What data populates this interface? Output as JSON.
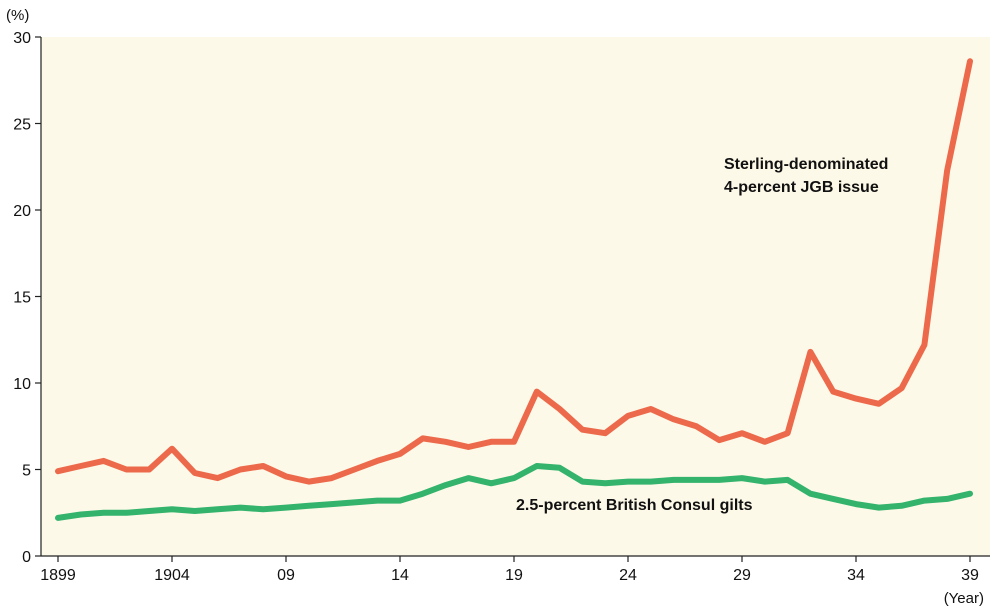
{
  "chart_data": {
    "type": "line",
    "title": "",
    "y_unit_label": "(%)",
    "x_unit_label": "(Year)",
    "ylim": [
      0,
      30
    ],
    "y_ticks": [
      0,
      5,
      10,
      15,
      20,
      25,
      30
    ],
    "xlim": [
      1899,
      1939
    ],
    "x_ticks": [
      {
        "value": 1899,
        "label": "1899"
      },
      {
        "value": 1904,
        "label": "1904"
      },
      {
        "value": 1909,
        "label": "09"
      },
      {
        "value": 1914,
        "label": "14"
      },
      {
        "value": 1919,
        "label": "19"
      },
      {
        "value": 1924,
        "label": "24"
      },
      {
        "value": 1929,
        "label": "29"
      },
      {
        "value": 1934,
        "label": "34"
      },
      {
        "value": 1939,
        "label": "39"
      }
    ],
    "background": "#fdf9e8",
    "grid": false,
    "x": [
      1899,
      1900,
      1901,
      1902,
      1903,
      1904,
      1905,
      1906,
      1907,
      1908,
      1909,
      1910,
      1911,
      1912,
      1913,
      1914,
      1915,
      1916,
      1917,
      1918,
      1919,
      1920,
      1921,
      1922,
      1923,
      1924,
      1925,
      1926,
      1927,
      1928,
      1929,
      1930,
      1931,
      1932,
      1933,
      1934,
      1935,
      1936,
      1937,
      1938,
      1939
    ],
    "series": [
      {
        "name_line1": "Sterling-denominated",
        "name_line2": "4-percent JGB issue",
        "color": "#ec6a4b",
        "values": [
          4.9,
          5.2,
          5.5,
          5.0,
          5.0,
          6.2,
          4.8,
          4.5,
          5.0,
          5.2,
          4.6,
          4.3,
          4.5,
          5.0,
          5.5,
          5.9,
          6.8,
          6.6,
          6.3,
          6.6,
          6.6,
          9.5,
          8.5,
          7.3,
          7.1,
          8.1,
          8.5,
          7.9,
          7.5,
          6.7,
          7.1,
          6.6,
          7.1,
          11.8,
          9.5,
          9.1,
          8.8,
          9.7,
          12.2,
          22.3,
          28.6
        ]
      },
      {
        "name": "2.5-percent British Consul gilts",
        "color": "#33b36c",
        "values": [
          2.2,
          2.4,
          2.5,
          2.5,
          2.6,
          2.7,
          2.6,
          2.7,
          2.8,
          2.7,
          2.8,
          2.9,
          3.0,
          3.1,
          3.2,
          3.2,
          3.6,
          4.1,
          4.5,
          4.2,
          4.5,
          5.2,
          5.1,
          4.3,
          4.2,
          4.3,
          4.3,
          4.4,
          4.4,
          4.4,
          4.5,
          4.3,
          4.4,
          3.6,
          3.3,
          3.0,
          2.8,
          2.9,
          3.2,
          3.3,
          3.6
        ]
      }
    ]
  }
}
